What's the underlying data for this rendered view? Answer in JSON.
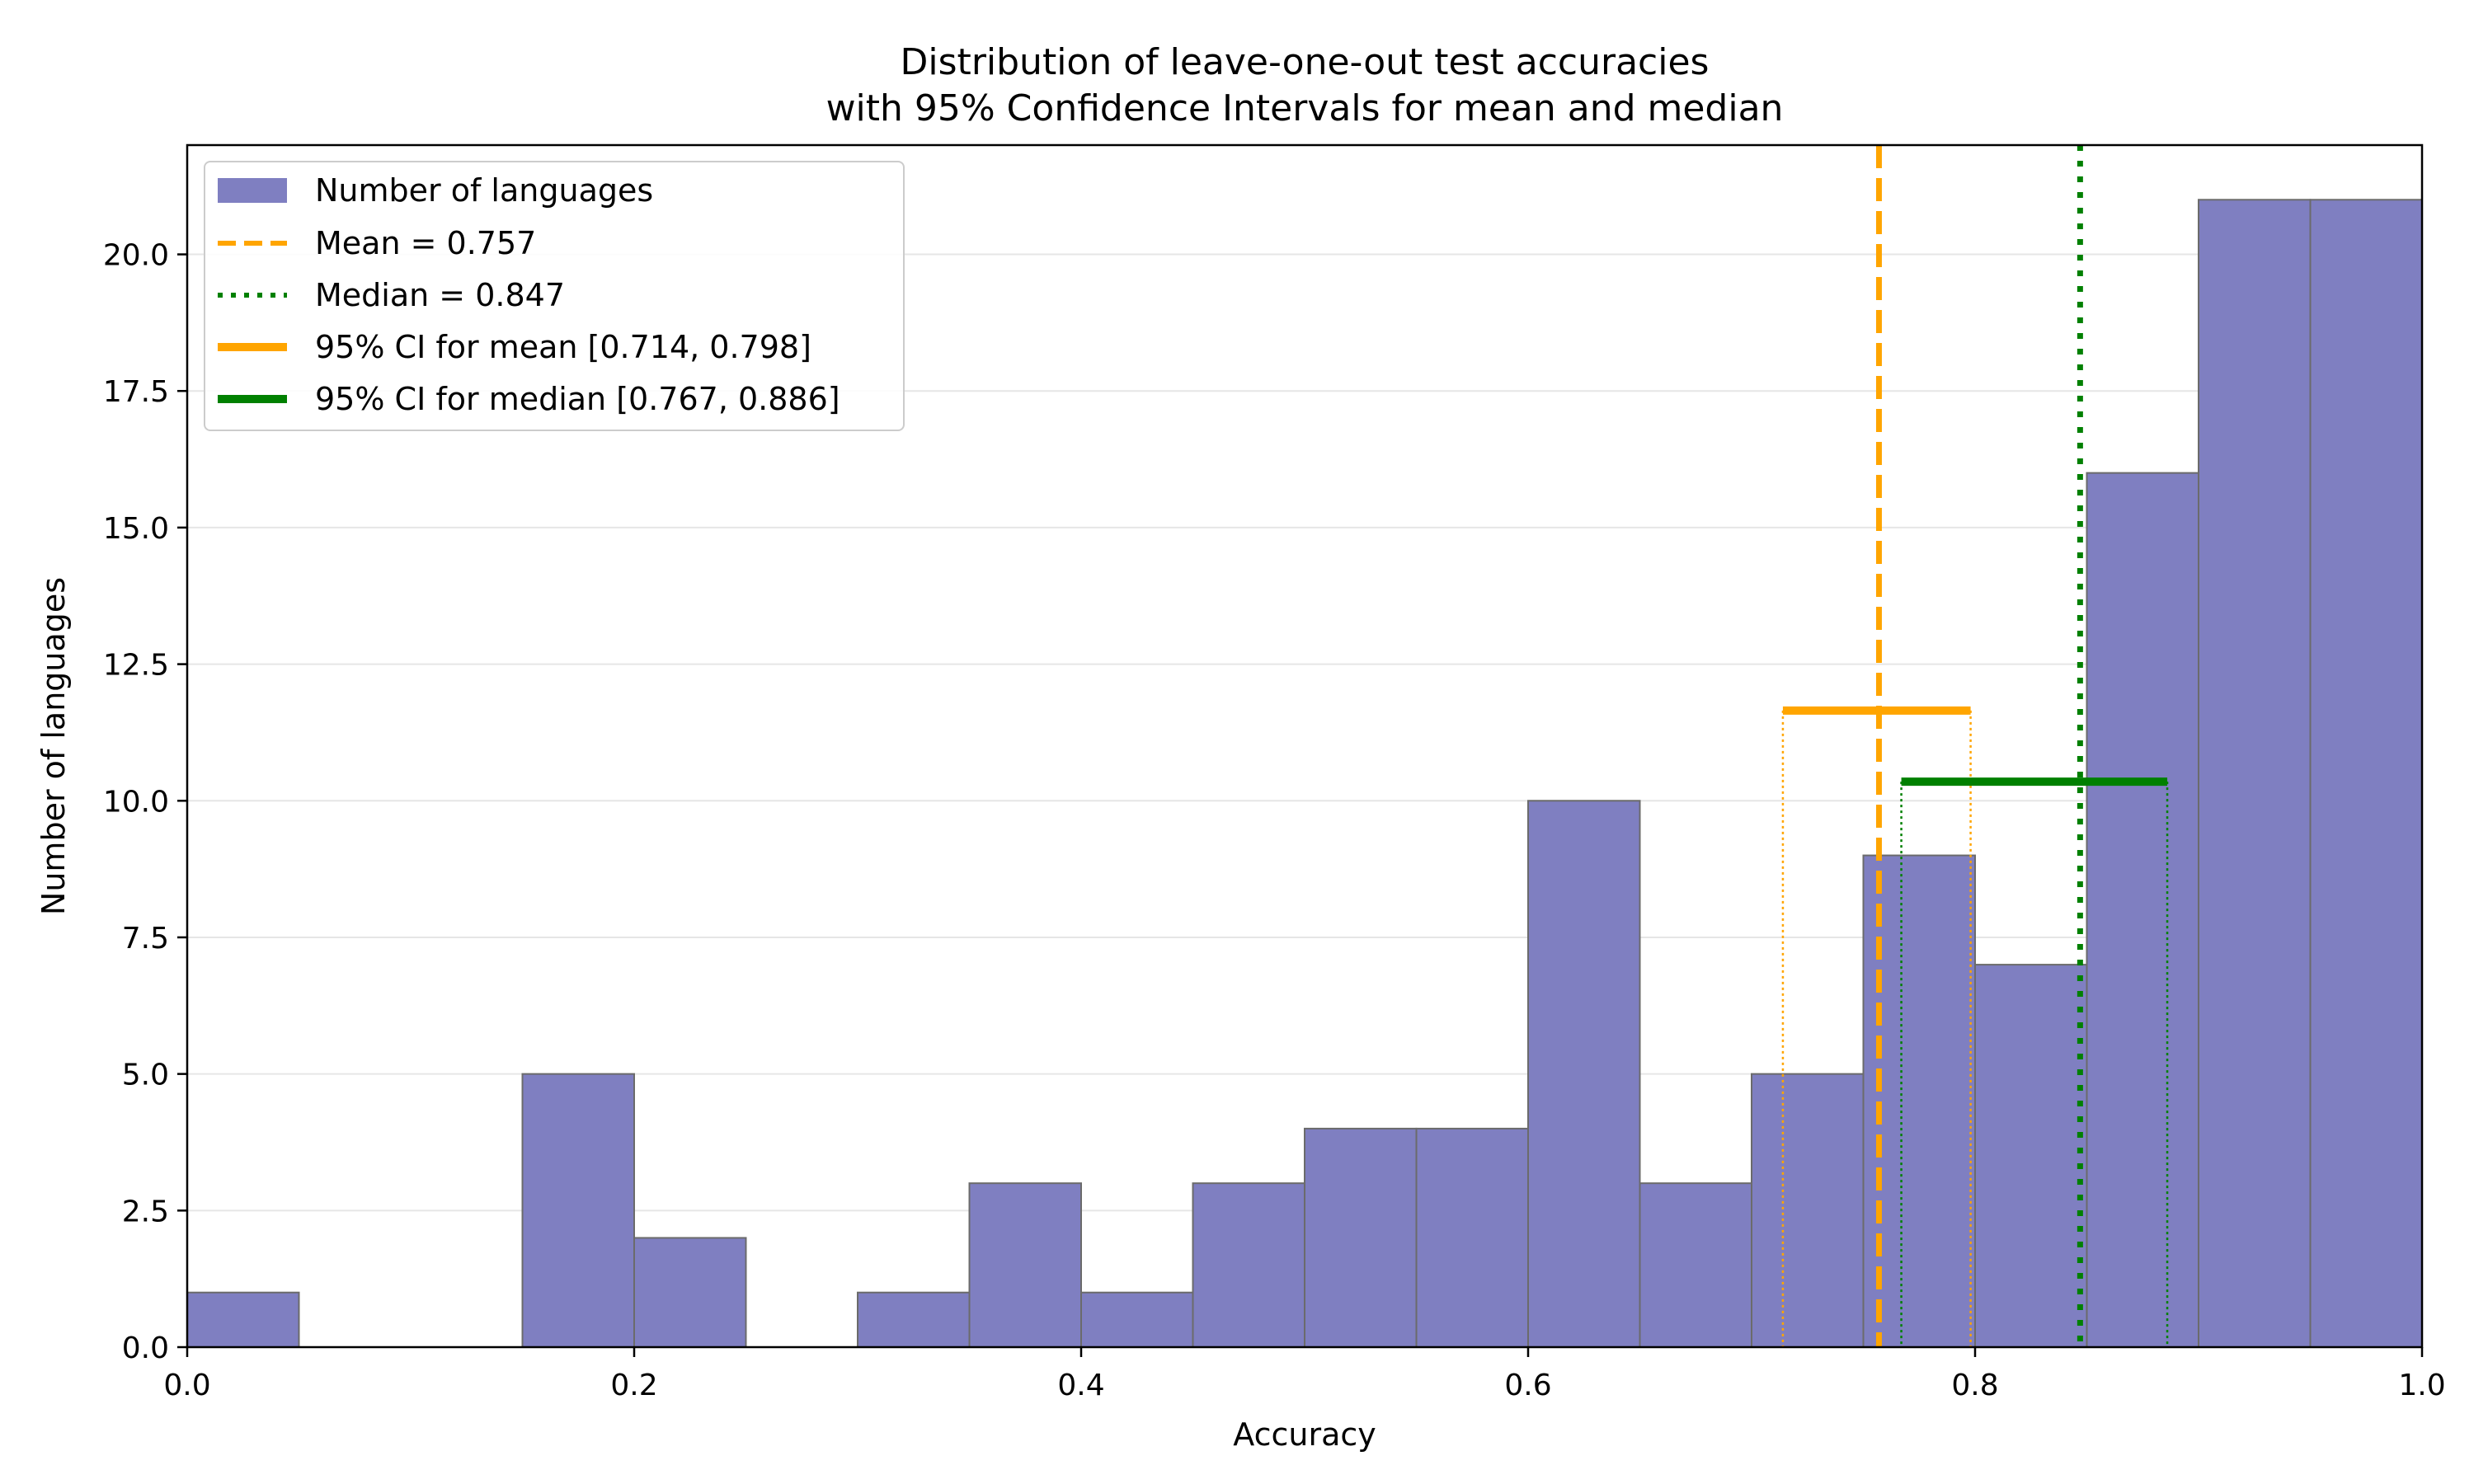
{
  "chart_data": {
    "type": "bar",
    "title_lines": [
      "Distribution of leave-one-out test accuracies",
      "with 95% Confidence Intervals for mean and median"
    ],
    "xlabel": "Accuracy",
    "ylabel": "Number of languages",
    "xlim": [
      0.0,
      1.0
    ],
    "ylim": [
      0.0,
      22.0
    ],
    "xticks": [
      0.0,
      0.2,
      0.4,
      0.6,
      0.8,
      1.0
    ],
    "xtick_labels": [
      "0.0",
      "0.2",
      "0.4",
      "0.6",
      "0.8",
      "1.0"
    ],
    "yticks": [
      0.0,
      2.5,
      5.0,
      7.5,
      10.0,
      12.5,
      15.0,
      17.5,
      20.0
    ],
    "ytick_labels": [
      "0.0",
      "2.5",
      "5.0",
      "7.5",
      "10.0",
      "12.5",
      "15.0",
      "17.5",
      "20.0"
    ],
    "grid": "horizontal",
    "bin_edges": [
      0.0,
      0.05,
      0.1,
      0.15,
      0.2,
      0.25,
      0.3,
      0.35,
      0.4,
      0.45,
      0.5,
      0.55,
      0.6,
      0.65,
      0.7,
      0.75,
      0.8,
      0.85,
      0.9,
      0.95,
      1.0
    ],
    "counts": [
      1,
      0,
      0,
      5,
      2,
      0,
      1,
      3,
      1,
      3,
      4,
      4,
      10,
      3,
      5,
      9,
      7,
      16,
      21,
      21
    ],
    "mean": 0.757,
    "median": 0.847,
    "ci_mean": [
      0.714,
      0.798
    ],
    "ci_median": [
      0.767,
      0.886
    ],
    "ci_mean_height": 11.65,
    "ci_median_height": 10.35,
    "colors": {
      "bars": "#7f7fc1",
      "bar_edge": "#6b6b6b",
      "mean": "#ffa500",
      "median": "#008000",
      "grid": "#e6e6e6"
    },
    "legend": {
      "position": "upper-left",
      "entries": [
        {
          "label": "Number of languages",
          "style": "patch"
        },
        {
          "label": "Mean = 0.757",
          "style": "dashed-orange"
        },
        {
          "label": "Median = 0.847",
          "style": "dotted-green"
        },
        {
          "label": "95% CI for mean [0.714, 0.798]",
          "style": "solid-orange"
        },
        {
          "label": "95% CI for median [0.767, 0.886]",
          "style": "solid-green"
        }
      ]
    }
  }
}
